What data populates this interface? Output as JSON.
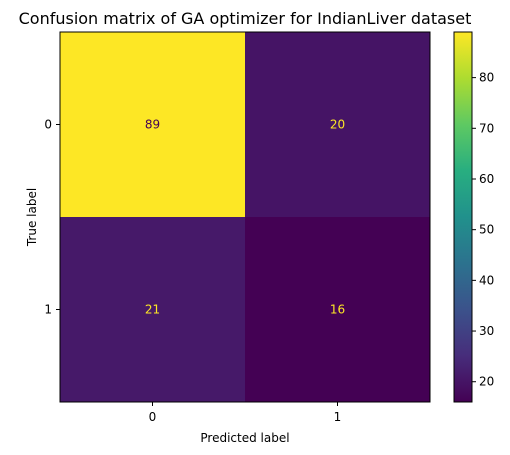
{
  "chart_data": {
    "type": "heatmap",
    "title": "Confusion matrix of GA optimizer for IndianLiver dataset",
    "xlabel": "Predicted label",
    "ylabel": "True label",
    "x_categories": [
      "0",
      "1"
    ],
    "y_categories": [
      "0",
      "1"
    ],
    "values": [
      [
        89,
        20
      ],
      [
        21,
        16
      ]
    ],
    "colormap": "viridis",
    "colorbar": {
      "min": 16,
      "max": 89,
      "ticks": [
        "20",
        "30",
        "40",
        "50",
        "60",
        "70",
        "80"
      ]
    },
    "grid": false
  }
}
